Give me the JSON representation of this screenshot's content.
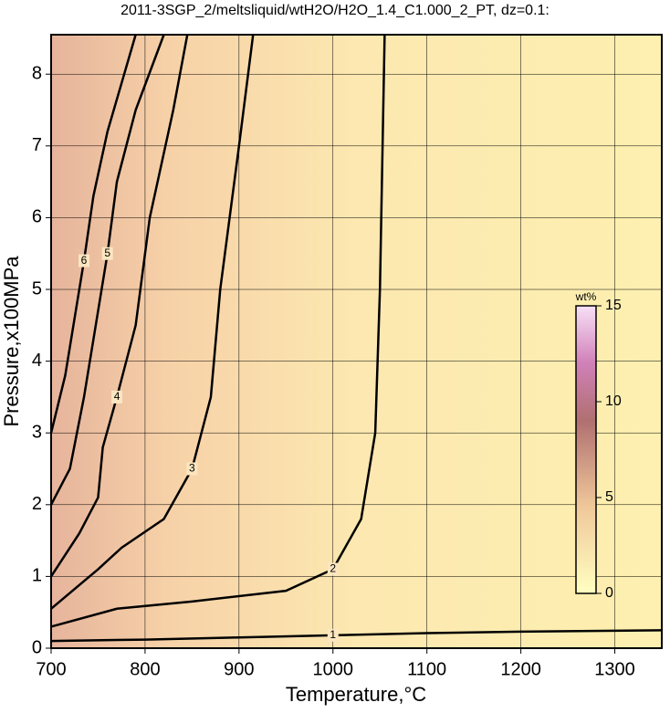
{
  "chart_data": {
    "type": "contour",
    "title": "2011-3SGP_2/meltsliquid/wtH2O/H2O_1.4_C1.000_2_PT, dz=0.1:",
    "x_label": "Temperature,°C",
    "y_label": "Pressure,x100MPa",
    "xlim": [
      700,
      1350
    ],
    "xticks": [
      700,
      800,
      900,
      1000,
      1100,
      1200,
      1300
    ],
    "ylim": [
      0,
      8.55
    ],
    "yticks": [
      0,
      1,
      2,
      3,
      4,
      5,
      6,
      7,
      8
    ],
    "grid": true,
    "contours": [
      {
        "level": 1,
        "x": [
          700,
          800,
          900,
          1000,
          1100,
          1200,
          1350
        ],
        "y": [
          0.1,
          0.12,
          0.15,
          0.18,
          0.21,
          0.23,
          0.25
        ]
      },
      {
        "level": 2,
        "x": [
          700,
          770,
          850,
          950,
          1000,
          1030,
          1045,
          1050,
          1055
        ],
        "y": [
          0.3,
          0.55,
          0.65,
          0.8,
          1.1,
          1.8,
          3,
          5,
          8.55
        ]
      },
      {
        "level": 3,
        "x": [
          700,
          750,
          775,
          820,
          850,
          870,
          880,
          900,
          915
        ],
        "y": [
          0.55,
          1.1,
          1.4,
          1.8,
          2.5,
          3.5,
          5,
          7,
          8.55
        ]
      },
      {
        "level": 4,
        "x": [
          700,
          730,
          750,
          755,
          770,
          790,
          805,
          830,
          845
        ],
        "y": [
          1.0,
          1.6,
          2.1,
          2.8,
          3.5,
          4.5,
          6,
          7.5,
          8.55
        ]
      },
      {
        "level": 5,
        "x": [
          700,
          720,
          735,
          745,
          760,
          770,
          790,
          820
        ],
        "y": [
          2.0,
          2.5,
          3.5,
          4.3,
          5.5,
          6.5,
          7.5,
          8.55
        ]
      },
      {
        "level": 6,
        "x": [
          700,
          715,
          725,
          735,
          745,
          760,
          790
        ],
        "y": [
          3.0,
          3.8,
          4.6,
          5.4,
          6.3,
          7.2,
          8.55
        ]
      }
    ],
    "colorbar": {
      "label": "wt%",
      "lim": [
        0,
        15
      ],
      "ticks": [
        0,
        5,
        10,
        15
      ]
    }
  }
}
